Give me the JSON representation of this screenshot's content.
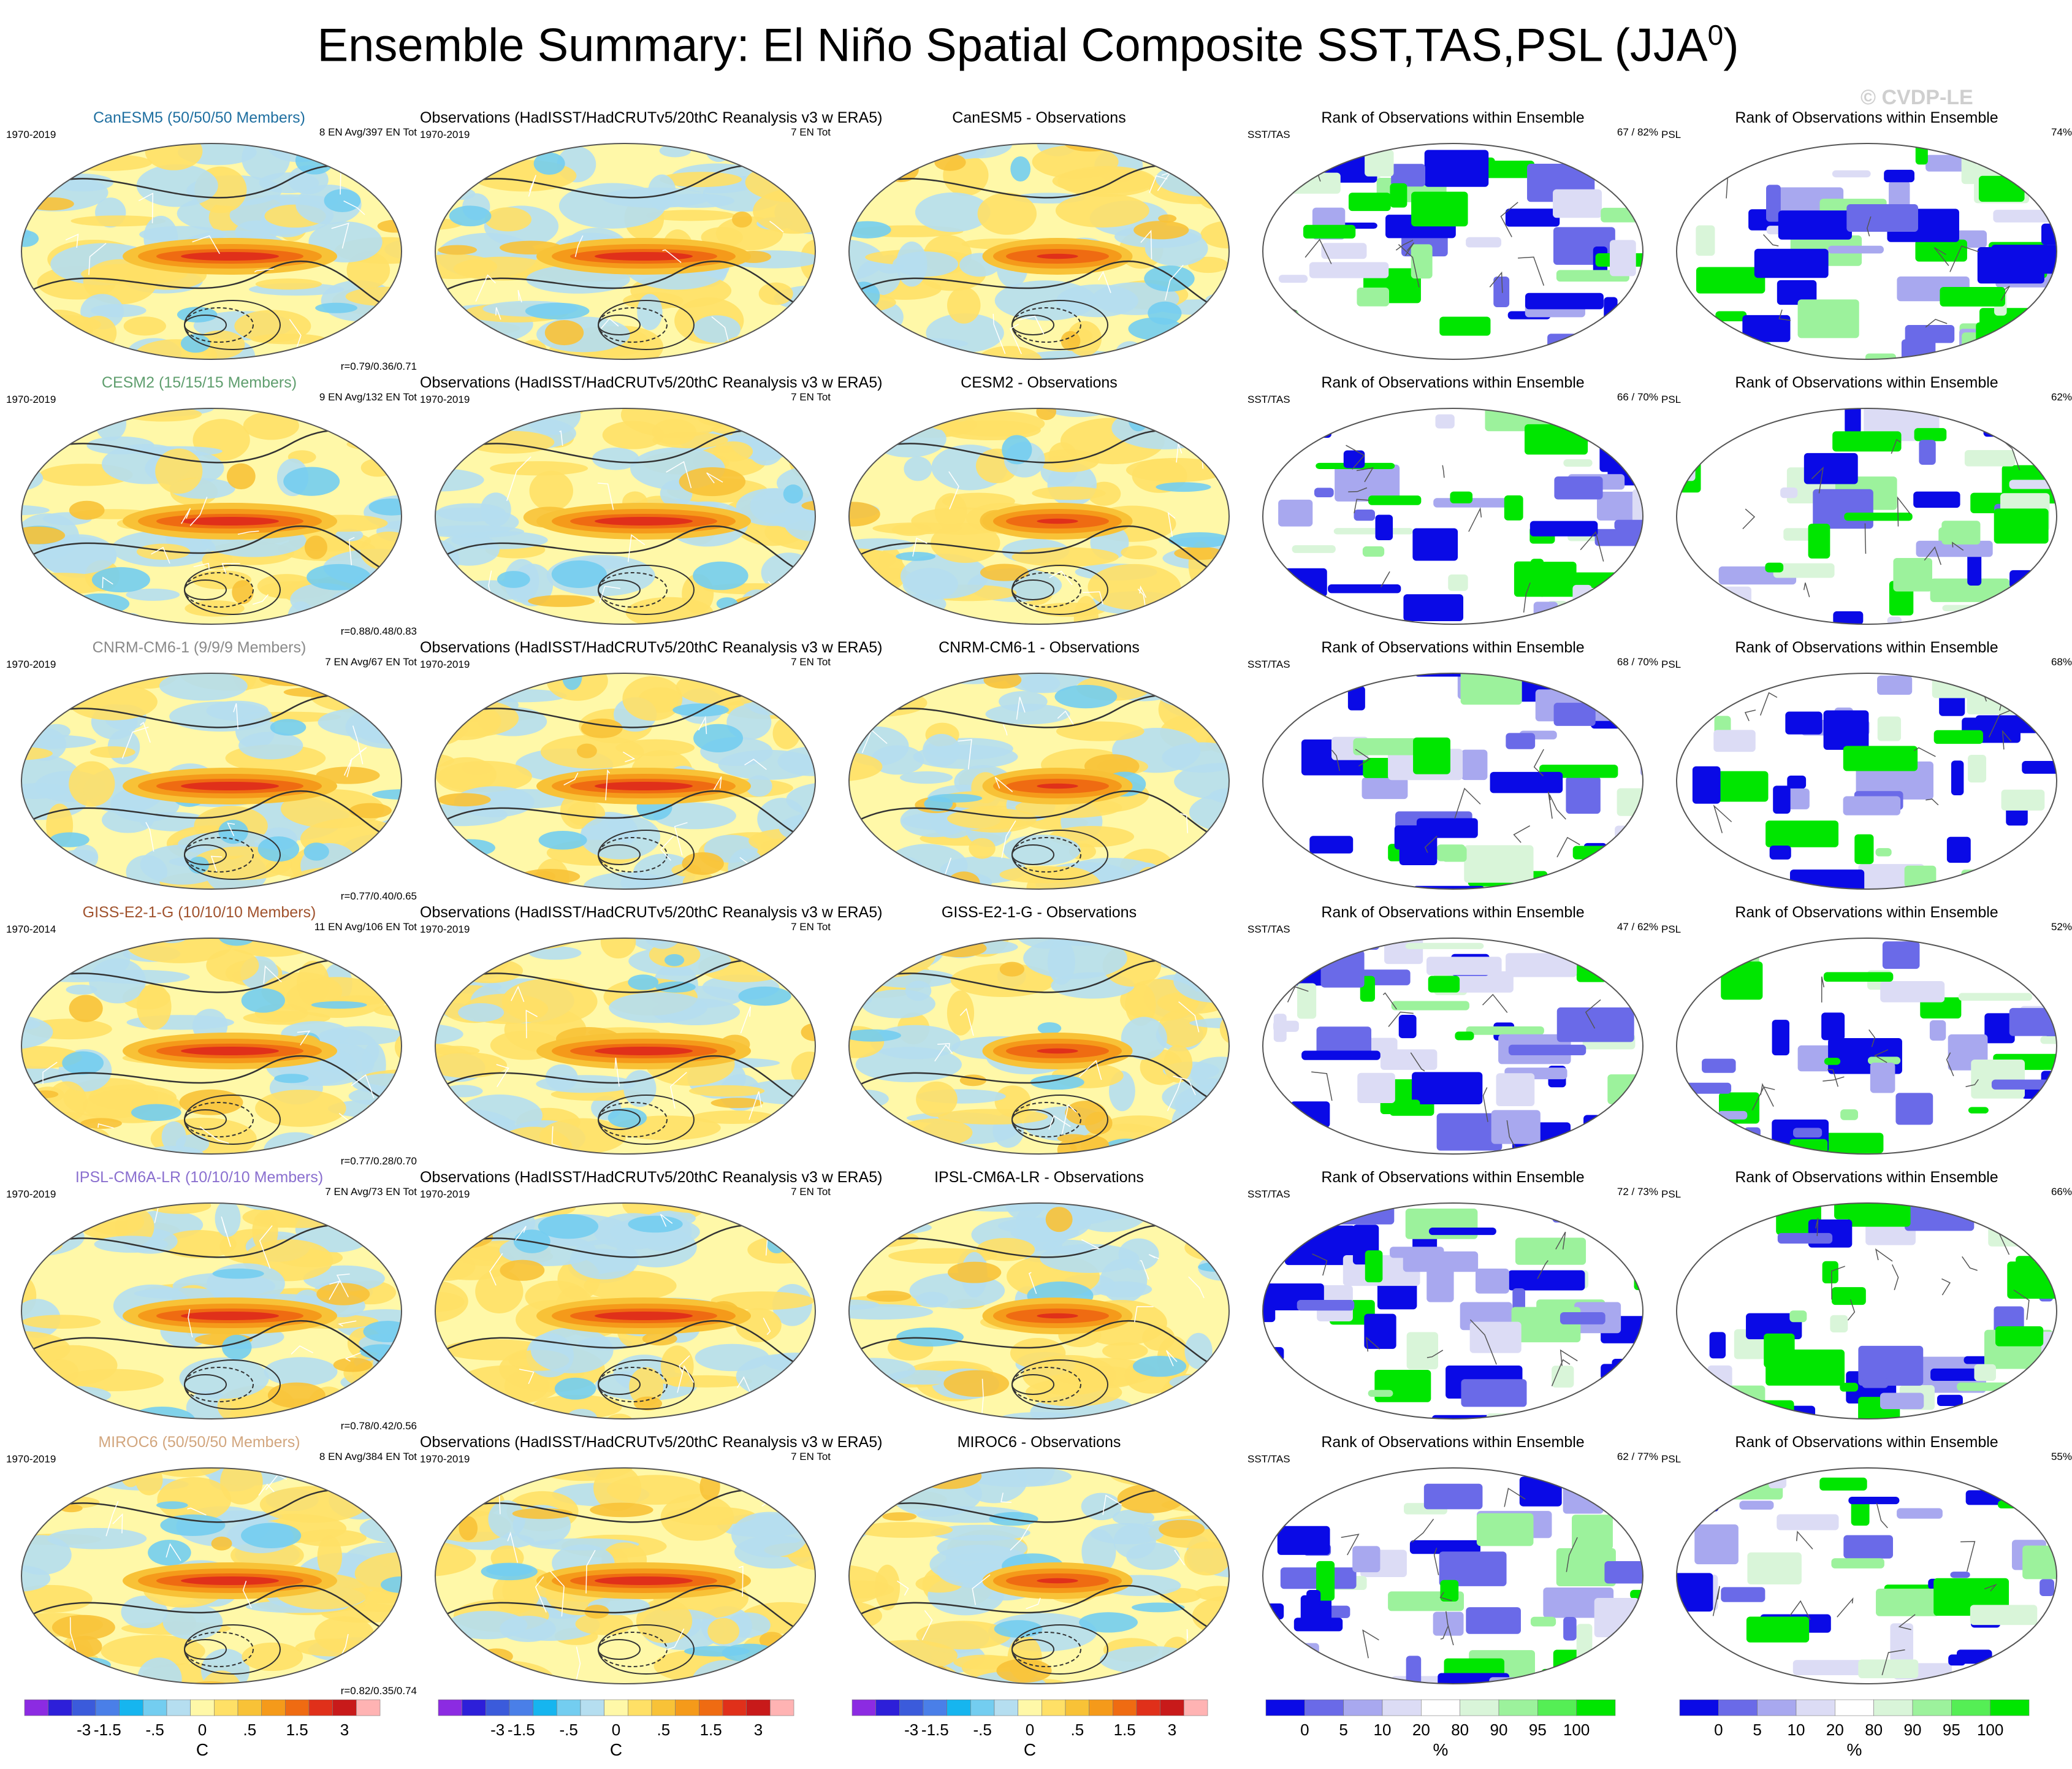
{
  "title": {
    "main": "Ensemble Summary: El Niño Spatial Composite SST,TAS,PSL (JJA",
    "sup": "0",
    "close": ")"
  },
  "watermark": "© CVDP-LE",
  "rows": [
    {
      "model_title": "CanESM5 (50/50/50 Members)",
      "model_color": "#1f6fa0",
      "model_period": "1970-2019",
      "model_stats": "8 EN Avg/397 EN Tot",
      "model_r": "r=0.79/0.36/0.71",
      "obs_title": "Observations (HadISST/HadCRUTv5/20thC Reanalysis v3 w ERA5)",
      "obs_period": "1970-2019",
      "obs_count": "7 EN Tot",
      "diff_title": "CanESM5 - Observations",
      "rank_title": "Rank of Observations within Ensemble",
      "rank_sst_label": "SST/TAS",
      "rank_sst_pct": "67 /  82%",
      "rank_psl_label": "PSL",
      "rank_psl_pct": "74%"
    },
    {
      "model_title": "CESM2 (15/15/15 Members)",
      "model_color": "#5f9e6e",
      "model_period": "1970-2019",
      "model_stats": "9 EN Avg/132 EN Tot",
      "model_r": "r=0.88/0.48/0.83",
      "obs_title": "Observations (HadISST/HadCRUTv5/20thC Reanalysis v3 w ERA5)",
      "obs_period": "1970-2019",
      "obs_count": "7 EN Tot",
      "diff_title": "CESM2 - Observations",
      "rank_title": "Rank of Observations within Ensemble",
      "rank_sst_label": "SST/TAS",
      "rank_sst_pct": "66 /  70%",
      "rank_psl_label": "PSL",
      "rank_psl_pct": "62%"
    },
    {
      "model_title": "CNRM-CM6-1 (9/9/9 Members)",
      "model_color": "#8a8a8a",
      "model_period": "1970-2019",
      "model_stats": "7 EN Avg/67 EN Tot",
      "model_r": "r=0.77/0.40/0.65",
      "obs_title": "Observations (HadISST/HadCRUTv5/20thC Reanalysis v3 w ERA5)",
      "obs_period": "1970-2019",
      "obs_count": "7 EN Tot",
      "diff_title": "CNRM-CM6-1 - Observations",
      "rank_title": "Rank of Observations within Ensemble",
      "rank_sst_label": "SST/TAS",
      "rank_sst_pct": "68 /  70%",
      "rank_psl_label": "PSL",
      "rank_psl_pct": "68%"
    },
    {
      "model_title": "GISS-E2-1-G (10/10/10 Members)",
      "model_color": "#a0522d",
      "model_period": "1970-2014",
      "model_stats": "11 EN Avg/106 EN Tot",
      "model_r": "r=0.77/0.28/0.70",
      "obs_title": "Observations (HadISST/HadCRUTv5/20thC Reanalysis v3 w ERA5)",
      "obs_period": "1970-2019",
      "obs_count": "7 EN Tot",
      "diff_title": "GISS-E2-1-G - Observations",
      "rank_title": "Rank of Observations within Ensemble",
      "rank_sst_label": "SST/TAS",
      "rank_sst_pct": "47 /  62%",
      "rank_psl_label": "PSL",
      "rank_psl_pct": "52%"
    },
    {
      "model_title": "IPSL-CM6A-LR (10/10/10 Members)",
      "model_color": "#8a6fcf",
      "model_period": "1970-2019",
      "model_stats": "7 EN Avg/73 EN Tot",
      "model_r": "r=0.78/0.42/0.56",
      "obs_title": "Observations (HadISST/HadCRUTv5/20thC Reanalysis v3 w ERA5)",
      "obs_period": "1970-2019",
      "obs_count": "7 EN Tot",
      "diff_title": "IPSL-CM6A-LR - Observations",
      "rank_title": "Rank of Observations within Ensemble",
      "rank_sst_label": "SST/TAS",
      "rank_sst_pct": "72 /  73%",
      "rank_psl_label": "PSL",
      "rank_psl_pct": "66%"
    },
    {
      "model_title": "MIROC6 (50/50/50 Members)",
      "model_color": "#d2a67e",
      "model_period": "1970-2019",
      "model_stats": "8 EN Avg/384 EN Tot",
      "model_r": "r=0.82/0.35/0.74",
      "obs_title": "Observations (HadISST/HadCRUTv5/20thC Reanalysis v3 w ERA5)",
      "obs_period": "1970-2019",
      "obs_count": "7 EN Tot",
      "diff_title": "MIROC6 - Observations",
      "rank_title": "Rank of Observations within Ensemble",
      "rank_sst_label": "SST/TAS",
      "rank_sst_pct": "62 /  77%",
      "rank_psl_label": "PSL",
      "rank_psl_pct": "55%"
    }
  ],
  "temp_colorbar": {
    "colors": [
      "#8c2be2",
      "#2d1fd9",
      "#3b5bdb",
      "#4a7fe8",
      "#16b5ef",
      "#73cdf0",
      "#b5def0",
      "#fff8a8",
      "#ffe066",
      "#f8c237",
      "#f59a1a",
      "#ef6b12",
      "#e0301a",
      "#c81a1a",
      "#ffb3b3"
    ],
    "ticks": [
      "-3",
      "-1.5",
      "-.5",
      "0",
      ".5",
      "1.5",
      "3"
    ],
    "unit": "C"
  },
  "rank_colorbar": {
    "colors": [
      "#0a0ae6",
      "#6a6ae8",
      "#a8a8ef",
      "#dcdcf5",
      "#ffffff",
      "#d9f5d9",
      "#9cf29c",
      "#55ee55",
      "#00e600"
    ],
    "ticks": [
      "0",
      "5",
      "10",
      "20",
      "80",
      "90",
      "95",
      "100"
    ],
    "unit": "%"
  }
}
